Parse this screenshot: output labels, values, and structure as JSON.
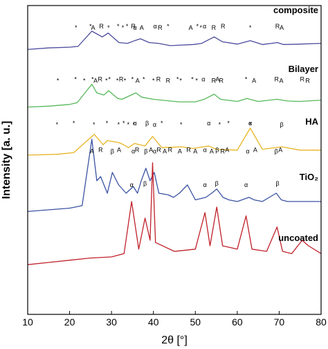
{
  "chart_data": {
    "type": "line",
    "title": "",
    "xlabel": "2θ [°]",
    "ylabel": "Intensity [a. u.]",
    "xlim": [
      10,
      80
    ],
    "xticks": [
      "10",
      "20",
      "30",
      "40",
      "50",
      "60",
      "70",
      "80"
    ],
    "y_ticks_shown": false,
    "grid": false,
    "legend": "none",
    "series": [
      {
        "name": "composite",
        "color": "#4a4a9c",
        "x": [
          10,
          15,
          20,
          22,
          25.3,
          27.8,
          29.2,
          31.8,
          33.8,
          35.5,
          36.9,
          39,
          41.2,
          44,
          49.5,
          51.5,
          54.5,
          56.5,
          60,
          63.1,
          66,
          69.6,
          71,
          75,
          80
        ],
        "y": [
          0.12,
          0.16,
          0.18,
          0.2,
          0.6,
          0.45,
          0.55,
          0.3,
          0.28,
          0.35,
          0.4,
          0.3,
          0.28,
          0.22,
          0.25,
          0.28,
          0.45,
          0.32,
          0.26,
          0.35,
          0.25,
          0.3,
          0.25,
          0.26,
          0.28
        ]
      },
      {
        "name": "Bilayer",
        "color": "#55b85a",
        "x": [
          10,
          15,
          20,
          21.8,
          25.3,
          26.5,
          28.2,
          29.3,
          31.5,
          32.5,
          35.8,
          37.2,
          40,
          42,
          46,
          50,
          52.1,
          54.5,
          56,
          60,
          62.3,
          65,
          69.5,
          72,
          75,
          80
        ],
        "y": [
          0.12,
          0.14,
          0.18,
          0.22,
          0.65,
          0.45,
          0.4,
          0.5,
          0.32,
          0.3,
          0.45,
          0.35,
          0.3,
          0.28,
          0.24,
          0.24,
          0.3,
          0.42,
          0.3,
          0.25,
          0.32,
          0.25,
          0.3,
          0.26,
          0.25,
          0.28
        ]
      },
      {
        "name": "HA",
        "color": "#e6b422",
        "x": [
          10,
          17,
          21,
          25.9,
          28,
          29,
          31.8,
          32.9,
          34,
          35.5,
          38,
          39.8,
          42,
          46.7,
          49.5,
          53.2,
          55,
          60,
          63.1,
          66,
          70.6,
          75,
          80
        ],
        "y": [
          0.1,
          0.12,
          0.16,
          0.6,
          0.35,
          0.45,
          0.4,
          0.35,
          0.28,
          0.38,
          0.32,
          0.55,
          0.28,
          0.3,
          0.26,
          0.32,
          0.24,
          0.22,
          0.75,
          0.24,
          0.3,
          0.22,
          0.22
        ]
      },
      {
        "name": "TiO₂",
        "color": "#3a52a2",
        "x": [
          10,
          15,
          20,
          23,
          25.3,
          26.5,
          27.4,
          29,
          30.2,
          31.7,
          33.5,
          35.2,
          36.2,
          37.1,
          38.2,
          39.2,
          40.2,
          41.3,
          43.5,
          44.8,
          46.2,
          48.1,
          50,
          52.5,
          53.9,
          55.1,
          56.6,
          58,
          60,
          62.8,
          64,
          66,
          69.3,
          70.5,
          72,
          76,
          80
        ],
        "y": [
          0.08,
          0.1,
          0.12,
          0.15,
          0.95,
          0.45,
          0.5,
          0.3,
          0.55,
          0.4,
          0.3,
          0.38,
          0.3,
          0.45,
          0.6,
          0.45,
          0.55,
          0.3,
          0.28,
          0.25,
          0.3,
          0.4,
          0.22,
          0.25,
          0.3,
          0.35,
          0.25,
          0.22,
          0.2,
          0.25,
          0.22,
          0.2,
          0.3,
          0.22,
          0.2,
          0.2,
          0.2
        ]
      },
      {
        "name": "uncoated",
        "color": "#c0202a",
        "x": [
          10,
          15,
          20,
          25,
          30,
          33,
          34.8,
          36.5,
          38,
          39.2,
          39.8,
          40.5,
          45,
          50,
          52.3,
          53.5,
          55.1,
          56.5,
          60,
          62.1,
          63.5,
          67,
          69.5,
          70.8,
          73,
          75.5,
          77,
          80
        ],
        "y": [
          0.08,
          0.1,
          0.12,
          0.14,
          0.15,
          0.18,
          0.65,
          0.22,
          0.5,
          0.3,
          1.0,
          0.28,
          0.2,
          0.22,
          0.55,
          0.25,
          0.6,
          0.25,
          0.22,
          0.52,
          0.22,
          0.2,
          0.42,
          0.2,
          0.18,
          0.3,
          0.25,
          0.18
        ]
      }
    ],
    "peak_labels": [
      {
        "series": 0,
        "marks": [
          {
            "x": 21.5,
            "t": "*"
          },
          {
            "x": 25,
            "t": "*"
          },
          {
            "x": 25.6,
            "t": "A"
          },
          {
            "x": 27.6,
            "t": "R"
          },
          {
            "x": 29.3,
            "t": "*"
          },
          {
            "x": 31.6,
            "t": "*"
          },
          {
            "x": 32.7,
            "t": "*"
          },
          {
            "x": 33.7,
            "t": "*"
          },
          {
            "x": 35.6,
            "t": "α"
          },
          {
            "x": 35.2,
            "t": "R"
          },
          {
            "x": 37.2,
            "t": "A"
          },
          {
            "x": 40.4,
            "t": "α"
          },
          {
            "x": 41.6,
            "t": "R"
          },
          {
            "x": 43.5,
            "t": "*"
          },
          {
            "x": 48.9,
            "t": "A"
          },
          {
            "x": 50.5,
            "t": "*"
          },
          {
            "x": 51.3,
            "t": "*"
          },
          {
            "x": 52.2,
            "t": "α"
          },
          {
            "x": 54.4,
            "t": "R"
          },
          {
            "x": 56.6,
            "t": "R"
          },
          {
            "x": 63.1,
            "t": "*"
          },
          {
            "x": 69.6,
            "t": "R"
          },
          {
            "x": 70.6,
            "t": "A"
          }
        ]
      },
      {
        "series": 1,
        "marks": [
          {
            "x": 17.2,
            "t": "*"
          },
          {
            "x": 21.4,
            "t": "*"
          },
          {
            "x": 23.5,
            "t": "*"
          },
          {
            "x": 25.5,
            "t": "*"
          },
          {
            "x": 26.2,
            "t": "A"
          },
          {
            "x": 27.3,
            "t": "R"
          },
          {
            "x": 28.8,
            "t": "*"
          },
          {
            "x": 29.5,
            "t": "*"
          },
          {
            "x": 31.4,
            "t": "*"
          },
          {
            "x": 32.3,
            "t": "R"
          },
          {
            "x": 33.2,
            "t": "*"
          },
          {
            "x": 35,
            "t": "*"
          },
          {
            "x": 36.2,
            "t": "A"
          },
          {
            "x": 37.7,
            "t": "*"
          },
          {
            "x": 40,
            "t": "*"
          },
          {
            "x": 41.2,
            "t": "R"
          },
          {
            "x": 43.5,
            "t": "R"
          },
          {
            "x": 45.8,
            "t": "*"
          },
          {
            "x": 46.5,
            "t": "*"
          },
          {
            "x": 49.3,
            "t": "*"
          },
          {
            "x": 50.3,
            "t": "*"
          },
          {
            "x": 51.9,
            "t": "α"
          },
          {
            "x": 54.4,
            "t": "R"
          },
          {
            "x": 55.3,
            "t": "A"
          },
          {
            "x": 56.2,
            "t": "R"
          },
          {
            "x": 62.1,
            "t": "*"
          },
          {
            "x": 64,
            "t": "A"
          },
          {
            "x": 69.4,
            "t": "R"
          },
          {
            "x": 70.5,
            "t": "A"
          },
          {
            "x": 75.5,
            "t": "R"
          },
          {
            "x": 76.8,
            "t": "R"
          }
        ]
      },
      {
        "series": 2,
        "marks": [
          {
            "x": 17,
            "t": "*"
          },
          {
            "x": 21,
            "t": "*"
          },
          {
            "x": 25.8,
            "t": "*"
          },
          {
            "x": 28.9,
            "t": "*"
          },
          {
            "x": 31.7,
            "t": "*"
          },
          {
            "x": 32.9,
            "t": "*"
          },
          {
            "x": 34,
            "t": "*"
          },
          {
            "x": 35.6,
            "t": "α"
          },
          {
            "x": 35.3,
            "t": "*"
          },
          {
            "x": 38.5,
            "t": "β"
          },
          {
            "x": 40.3,
            "t": "α"
          },
          {
            "x": 42,
            "t": "*"
          },
          {
            "x": 46.6,
            "t": "*"
          },
          {
            "x": 53.2,
            "t": "α"
          },
          {
            "x": 55.8,
            "t": "*"
          },
          {
            "x": 57.9,
            "t": "*"
          },
          {
            "x": 63.1,
            "t": "*"
          },
          {
            "x": 63.1,
            "t": "α"
          },
          {
            "x": 70.6,
            "t": "β"
          }
        ]
      },
      {
        "series": 3,
        "marks": [
          {
            "x": 25.3,
            "t": "A"
          },
          {
            "x": 27.4,
            "t": "R"
          },
          {
            "x": 30.2,
            "t": "β"
          },
          {
            "x": 31.8,
            "t": "A"
          },
          {
            "x": 35.2,
            "t": "α"
          },
          {
            "x": 36.1,
            "t": "R"
          },
          {
            "x": 38.2,
            "t": "β"
          },
          {
            "x": 39.4,
            "t": "A"
          },
          {
            "x": 40.3,
            "t": "α"
          },
          {
            "x": 41.3,
            "t": "R"
          },
          {
            "x": 42.7,
            "t": "A"
          },
          {
            "x": 44,
            "t": "R"
          },
          {
            "x": 46.3,
            "t": "A"
          },
          {
            "x": 48.4,
            "t": "R"
          },
          {
            "x": 50,
            "t": "A"
          },
          {
            "x": 52.3,
            "t": "α"
          },
          {
            "x": 53.9,
            "t": "A"
          },
          {
            "x": 55.2,
            "t": "β"
          },
          {
            "x": 56.5,
            "t": "R"
          },
          {
            "x": 57.6,
            "t": "A"
          },
          {
            "x": 62.5,
            "t": "α"
          },
          {
            "x": 64.3,
            "t": "A"
          },
          {
            "x": 69.3,
            "t": "β"
          },
          {
            "x": 70.3,
            "t": "A"
          }
        ]
      },
      {
        "series": 4,
        "marks": [
          {
            "x": 34.8,
            "t": "α"
          },
          {
            "x": 38,
            "t": "β"
          },
          {
            "x": 52.3,
            "t": "α"
          },
          {
            "x": 55.1,
            "t": "β"
          },
          {
            "x": 62.1,
            "t": "α"
          },
          {
            "x": 69.6,
            "t": "β"
          }
        ]
      }
    ]
  }
}
